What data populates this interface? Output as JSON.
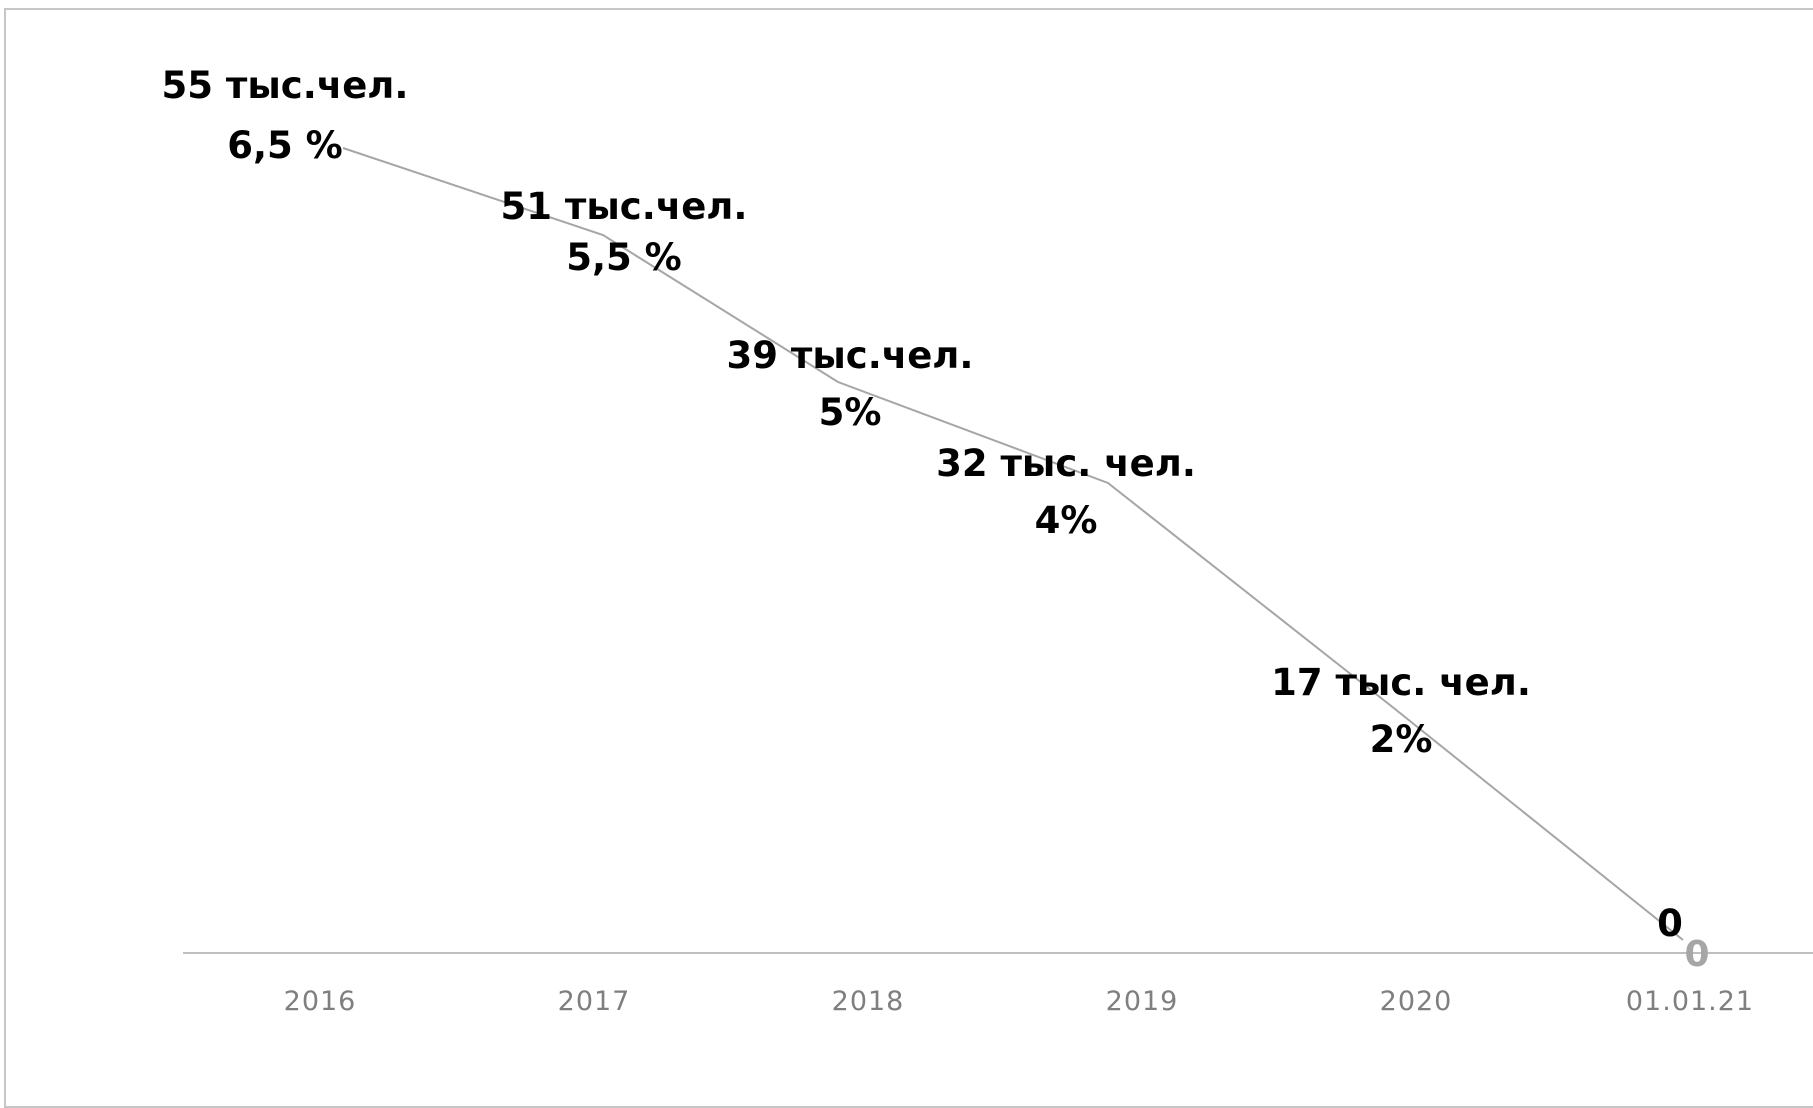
{
  "chart_data": {
    "type": "line",
    "categories": [
      "2016",
      "2017",
      "2018",
      "2019",
      "2020",
      "01.01.21"
    ],
    "series": [
      {
        "values": [
          55,
          51,
          39,
          32,
          17,
          0
        ],
        "color": "#a6a6a6"
      }
    ],
    "data_labels": [
      {
        "line1": "55  тыс.чел.",
        "line2": "6,5 %"
      },
      {
        "line1": "51 тыс.чел.",
        "line2": "5,5 %"
      },
      {
        "line1": "39 тыс.чел.",
        "line2": "5%"
      },
      {
        "line1": "32 тыс. чел.",
        "line2": "4%"
      },
      {
        "line1": "17 тыс. чел.",
        "line2": "2%"
      },
      {
        "line1": "0",
        "line2": ""
      }
    ],
    "axis_marker": "0",
    "title": "",
    "xlabel": "",
    "ylabel": "",
    "ylim": [
      0,
      60
    ],
    "grid": false,
    "legend": "none",
    "axis_color": "#bfbfbf",
    "label_color": "#000000",
    "tick_color": "#7f7f7f"
  }
}
